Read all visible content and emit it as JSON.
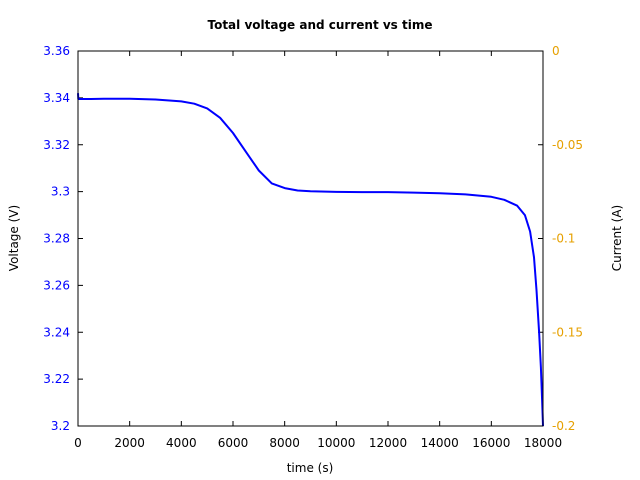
{
  "chart_data": {
    "type": "line",
    "title": "Total voltage and current vs time",
    "xlabel": "time (s)",
    "ylabel": "Voltage (V)",
    "y2label": "Current (A)",
    "xlim": [
      0,
      18000
    ],
    "ylim": [
      3.2,
      3.36
    ],
    "y2lim": [
      -0.2,
      0
    ],
    "x_ticks": [
      "0",
      "2000",
      "4000",
      "6000",
      "8000",
      "10000",
      "12000",
      "14000",
      "16000",
      "18000"
    ],
    "y_ticks": [
      "3.2",
      "3.22",
      "3.24",
      "3.26",
      "3.28",
      "3.3",
      "3.32",
      "3.34",
      "3.36"
    ],
    "y2_ticks": [
      "-0.2",
      "-0.15",
      "-0.1",
      "-0.05",
      "0"
    ],
    "grid": false,
    "colors": {
      "voltage_axis": "#0000ff",
      "current_axis": "#e6a000",
      "line": "#0000ff"
    },
    "series": [
      {
        "name": "Voltage (V)",
        "axis": "left",
        "x": [
          0,
          10,
          500,
          1000,
          2000,
          3000,
          4000,
          4500,
          5000,
          5500,
          6000,
          6500,
          7000,
          7500,
          8000,
          8500,
          9000,
          10000,
          11000,
          12000,
          13000,
          14000,
          15000,
          16000,
          16500,
          17000,
          17300,
          17500,
          17650,
          17750,
          17850,
          17920,
          17970,
          18000
        ],
        "values": [
          3.342,
          3.3395,
          3.3395,
          3.3396,
          3.3396,
          3.3393,
          3.3385,
          3.3375,
          3.3355,
          3.3315,
          3.325,
          3.317,
          3.309,
          3.3035,
          3.3015,
          3.3005,
          3.3002,
          3.2999,
          3.2998,
          3.2998,
          3.2996,
          3.2993,
          3.2988,
          3.2978,
          3.2965,
          3.294,
          3.29,
          3.283,
          3.272,
          3.258,
          3.24,
          3.225,
          3.21,
          3.2
        ]
      }
    ]
  }
}
